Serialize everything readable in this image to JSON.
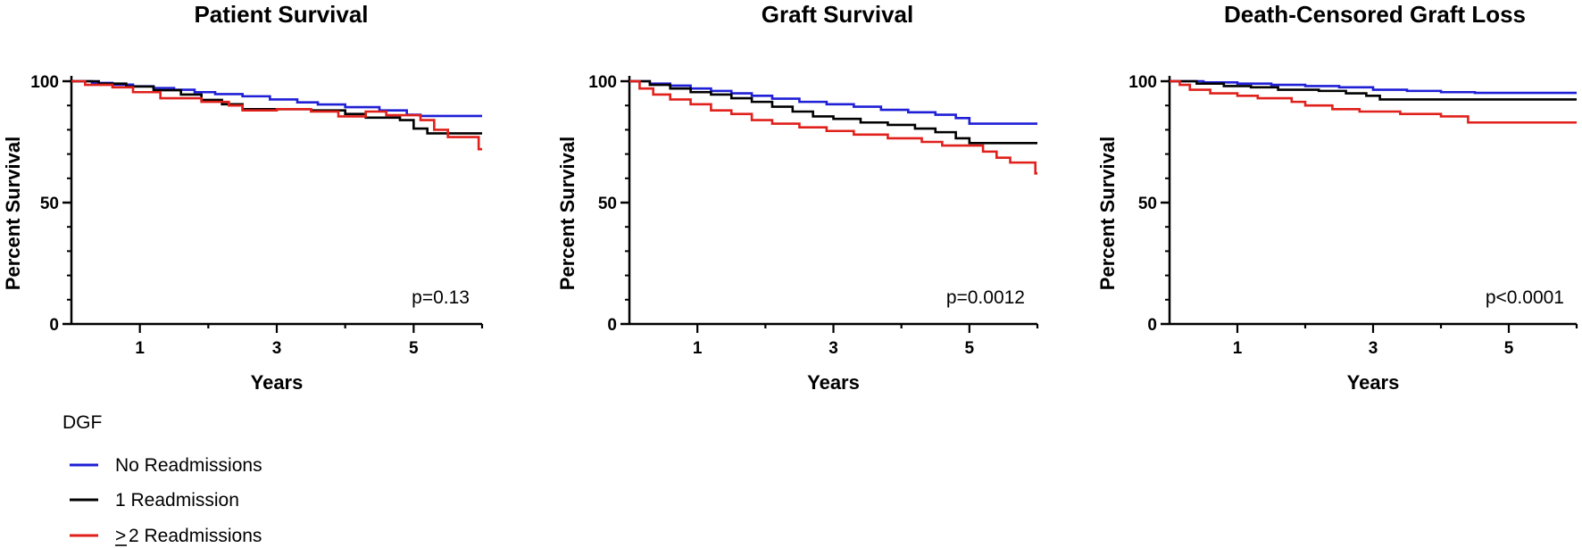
{
  "legend": {
    "title": "DGF",
    "items": [
      {
        "key": "none",
        "prefix": "",
        "text": "No Readmissions",
        "color": "#1f1fd6"
      },
      {
        "key": "one",
        "prefix": "",
        "text": "1  Readmission",
        "color": "#000000"
      },
      {
        "key": "two",
        "prefix": ">",
        "text": "2  Readmissions",
        "color": "#e0201b"
      }
    ]
  },
  "chart_data": [
    {
      "type": "line",
      "step": true,
      "title": "Patient Survival",
      "xlabel": "Years",
      "ylabel": "Percent Survival",
      "xlim": [
        0,
        6
      ],
      "ylim": [
        0,
        100
      ],
      "x_ticks": [
        1,
        3,
        5
      ],
      "y_ticks": [
        0,
        50,
        100
      ],
      "annotation": "p=0.13",
      "series": [
        {
          "key": "none",
          "color": "#1f1fd6",
          "points": [
            [
              0,
              100
            ],
            [
              0.3,
              99.3
            ],
            [
              0.6,
              98.6
            ],
            [
              0.9,
              97.9
            ],
            [
              1.2,
              97.2
            ],
            [
              1.5,
              96.5
            ],
            [
              1.8,
              95.5
            ],
            [
              2.1,
              94.7
            ],
            [
              2.5,
              93.8
            ],
            [
              2.9,
              92.5
            ],
            [
              3.3,
              91.3
            ],
            [
              3.6,
              90.4
            ],
            [
              4.0,
              89.3
            ],
            [
              4.5,
              88.0
            ],
            [
              4.9,
              86.2
            ],
            [
              5.1,
              85.7
            ],
            [
              6,
              85.7
            ]
          ]
        },
        {
          "key": "one",
          "color": "#000000",
          "points": [
            [
              0,
              100
            ],
            [
              0.4,
              99
            ],
            [
              0.8,
              97.8
            ],
            [
              1.2,
              96.3
            ],
            [
              1.6,
              94.5
            ],
            [
              1.9,
              92.3
            ],
            [
              2.2,
              90.5
            ],
            [
              2.5,
              88.5
            ],
            [
              3.0,
              88.5
            ],
            [
              3.5,
              88.0
            ],
            [
              4.0,
              86.5
            ],
            [
              4.3,
              85.0
            ],
            [
              4.8,
              84.0
            ],
            [
              5.0,
              80.5
            ],
            [
              5.2,
              78.5
            ],
            [
              6,
              78.5
            ]
          ]
        },
        {
          "key": "two",
          "color": "#e0201b",
          "points": [
            [
              0,
              100
            ],
            [
              0.2,
              98.5
            ],
            [
              0.6,
              97.5
            ],
            [
              0.9,
              95.5
            ],
            [
              1.3,
              93
            ],
            [
              1.9,
              91.5
            ],
            [
              2.3,
              90
            ],
            [
              2.5,
              88
            ],
            [
              3.0,
              88.5
            ],
            [
              3.5,
              87.5
            ],
            [
              3.9,
              85.5
            ],
            [
              4.3,
              87.5
            ],
            [
              4.6,
              86
            ],
            [
              5.0,
              86
            ],
            [
              5.1,
              84
            ],
            [
              5.3,
              80
            ],
            [
              5.5,
              77
            ],
            [
              5.9,
              77
            ],
            [
              5.95,
              72
            ],
            [
              6,
              72
            ]
          ]
        }
      ]
    },
    {
      "type": "line",
      "step": true,
      "title": "Graft Survival",
      "xlabel": "Years",
      "ylabel": "Percent Survival",
      "xlim": [
        0,
        6
      ],
      "ylim": [
        0,
        100
      ],
      "x_ticks": [
        1,
        3,
        5
      ],
      "y_ticks": [
        0,
        50,
        100
      ],
      "annotation": "p=0.0012",
      "series": [
        {
          "key": "none",
          "color": "#1f1fd6",
          "points": [
            [
              0,
              100
            ],
            [
              0.3,
              99
            ],
            [
              0.6,
              98.2
            ],
            [
              0.9,
              97
            ],
            [
              1.2,
              96
            ],
            [
              1.5,
              95
            ],
            [
              1.8,
              94
            ],
            [
              2.1,
              92.8
            ],
            [
              2.5,
              91.5
            ],
            [
              2.9,
              90.5
            ],
            [
              3.3,
              89.5
            ],
            [
              3.7,
              88.2
            ],
            [
              4.1,
              87.2
            ],
            [
              4.5,
              86.2
            ],
            [
              4.8,
              84.8
            ],
            [
              5.0,
              82.5
            ],
            [
              6,
              82.5
            ]
          ]
        },
        {
          "key": "one",
          "color": "#000000",
          "points": [
            [
              0,
              100
            ],
            [
              0.3,
              98.5
            ],
            [
              0.6,
              97
            ],
            [
              0.9,
              95.5
            ],
            [
              1.2,
              94.5
            ],
            [
              1.5,
              93
            ],
            [
              1.8,
              91.5
            ],
            [
              2.1,
              89.5
            ],
            [
              2.4,
              87.5
            ],
            [
              2.7,
              85.5
            ],
            [
              3.0,
              84.5
            ],
            [
              3.4,
              83
            ],
            [
              3.8,
              82
            ],
            [
              4.2,
              80.5
            ],
            [
              4.5,
              79
            ],
            [
              4.8,
              76.5
            ],
            [
              5.0,
              74.5
            ],
            [
              6,
              74.5
            ]
          ]
        },
        {
          "key": "two",
          "color": "#e0201b",
          "points": [
            [
              0,
              100
            ],
            [
              0.15,
              97
            ],
            [
              0.35,
              94.5
            ],
            [
              0.6,
              92.5
            ],
            [
              0.9,
              90.5
            ],
            [
              1.2,
              88
            ],
            [
              1.5,
              86.5
            ],
            [
              1.8,
              84
            ],
            [
              2.1,
              82.5
            ],
            [
              2.5,
              81
            ],
            [
              2.9,
              79.5
            ],
            [
              3.3,
              78
            ],
            [
              3.8,
              76.5
            ],
            [
              4.3,
              75
            ],
            [
              4.6,
              73.5
            ],
            [
              5.1,
              73.5
            ],
            [
              5.2,
              71
            ],
            [
              5.4,
              68.5
            ],
            [
              5.6,
              66.5
            ],
            [
              5.95,
              66.5
            ],
            [
              5.97,
              62
            ],
            [
              6,
              62
            ]
          ]
        }
      ]
    },
    {
      "type": "line",
      "step": true,
      "title": "Death-Censored Graft Loss",
      "xlabel": "Years",
      "ylabel": "Percent Survival",
      "xlim": [
        0,
        6
      ],
      "ylim": [
        0,
        100
      ],
      "x_ticks": [
        1,
        3,
        5
      ],
      "y_ticks": [
        0,
        50,
        100
      ],
      "annotation": "p<0.0001",
      "series": [
        {
          "key": "none",
          "color": "#1f1fd6",
          "points": [
            [
              0,
              100
            ],
            [
              0.5,
              99.5
            ],
            [
              1.0,
              99
            ],
            [
              1.5,
              98.5
            ],
            [
              2.0,
              98
            ],
            [
              2.5,
              97.5
            ],
            [
              3.0,
              96.5
            ],
            [
              3.5,
              96
            ],
            [
              4.0,
              95.5
            ],
            [
              4.5,
              95.2
            ],
            [
              6,
              95.2
            ]
          ]
        },
        {
          "key": "one",
          "color": "#000000",
          "points": [
            [
              0,
              100
            ],
            [
              0.4,
              99
            ],
            [
              0.8,
              98
            ],
            [
              1.2,
              97.5
            ],
            [
              1.6,
              96.5
            ],
            [
              2.2,
              96
            ],
            [
              2.6,
              95
            ],
            [
              2.9,
              94
            ],
            [
              3.1,
              92.5
            ],
            [
              6,
              92.5
            ]
          ]
        },
        {
          "key": "two",
          "color": "#e0201b",
          "points": [
            [
              0,
              100
            ],
            [
              0.15,
              98.5
            ],
            [
              0.3,
              96.5
            ],
            [
              0.6,
              95
            ],
            [
              1.0,
              94
            ],
            [
              1.3,
              93
            ],
            [
              1.8,
              91.5
            ],
            [
              2.0,
              90
            ],
            [
              2.4,
              88.5
            ],
            [
              2.8,
              87.5
            ],
            [
              3.4,
              86.5
            ],
            [
              4.0,
              85.5
            ],
            [
              4.4,
              83
            ],
            [
              6,
              83
            ]
          ]
        }
      ]
    }
  ]
}
